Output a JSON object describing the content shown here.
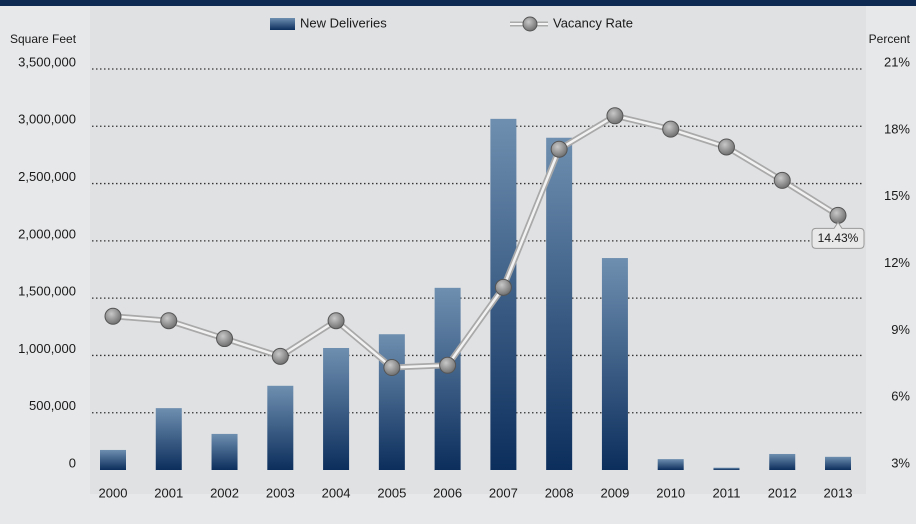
{
  "chart_data": {
    "type": "bar_line",
    "categories": [
      "2000",
      "2001",
      "2002",
      "2003",
      "2004",
      "2005",
      "2006",
      "2007",
      "2008",
      "2009",
      "2010",
      "2011",
      "2012",
      "2013"
    ],
    "ylabel": "Square Feet",
    "y2label": "Percent",
    "ylim": [
      0,
      3500000
    ],
    "yticks": [
      {
        "value": 0,
        "label": "0"
      },
      {
        "value": 500000,
        "label": "500,000"
      },
      {
        "value": 1000000,
        "label": "1,000,000"
      },
      {
        "value": 1500000,
        "label": "1,500,000"
      },
      {
        "value": 2000000,
        "label": "2,000,000"
      },
      {
        "value": 2500000,
        "label": "2,500,000"
      },
      {
        "value": 3000000,
        "label": "3,000,000"
      },
      {
        "value": 3500000,
        "label": "3,500,000"
      }
    ],
    "y2lim": [
      3,
      21
    ],
    "y2ticks": [
      {
        "value": 3,
        "label": "3%"
      },
      {
        "value": 6,
        "label": "6%"
      },
      {
        "value": 9,
        "label": "9%"
      },
      {
        "value": 12,
        "label": "12%"
      },
      {
        "value": 15,
        "label": "15%"
      },
      {
        "value": 18,
        "label": "18%"
      },
      {
        "value": 21,
        "label": "21%"
      }
    ],
    "grid": true,
    "series": [
      {
        "name": "New Deliveries",
        "type": "bar",
        "color": "#1c4677",
        "values": [
          175000,
          540000,
          315000,
          735000,
          1065000,
          1185000,
          1590000,
          3065000,
          2900000,
          1850000,
          95000,
          20000,
          140000,
          115000
        ]
      },
      {
        "name": "Vacancy Rate",
        "type": "line",
        "axis": "y2",
        "color": "#8a8a8a",
        "values": [
          9.9,
          9.7,
          8.9,
          8.1,
          9.7,
          7.6,
          7.7,
          11.2,
          17.4,
          18.9,
          18.3,
          17.5,
          16.0,
          14.43
        ],
        "value_labels": [
          null,
          null,
          null,
          null,
          null,
          null,
          null,
          null,
          null,
          null,
          null,
          null,
          null,
          "14.43%"
        ]
      }
    ]
  }
}
